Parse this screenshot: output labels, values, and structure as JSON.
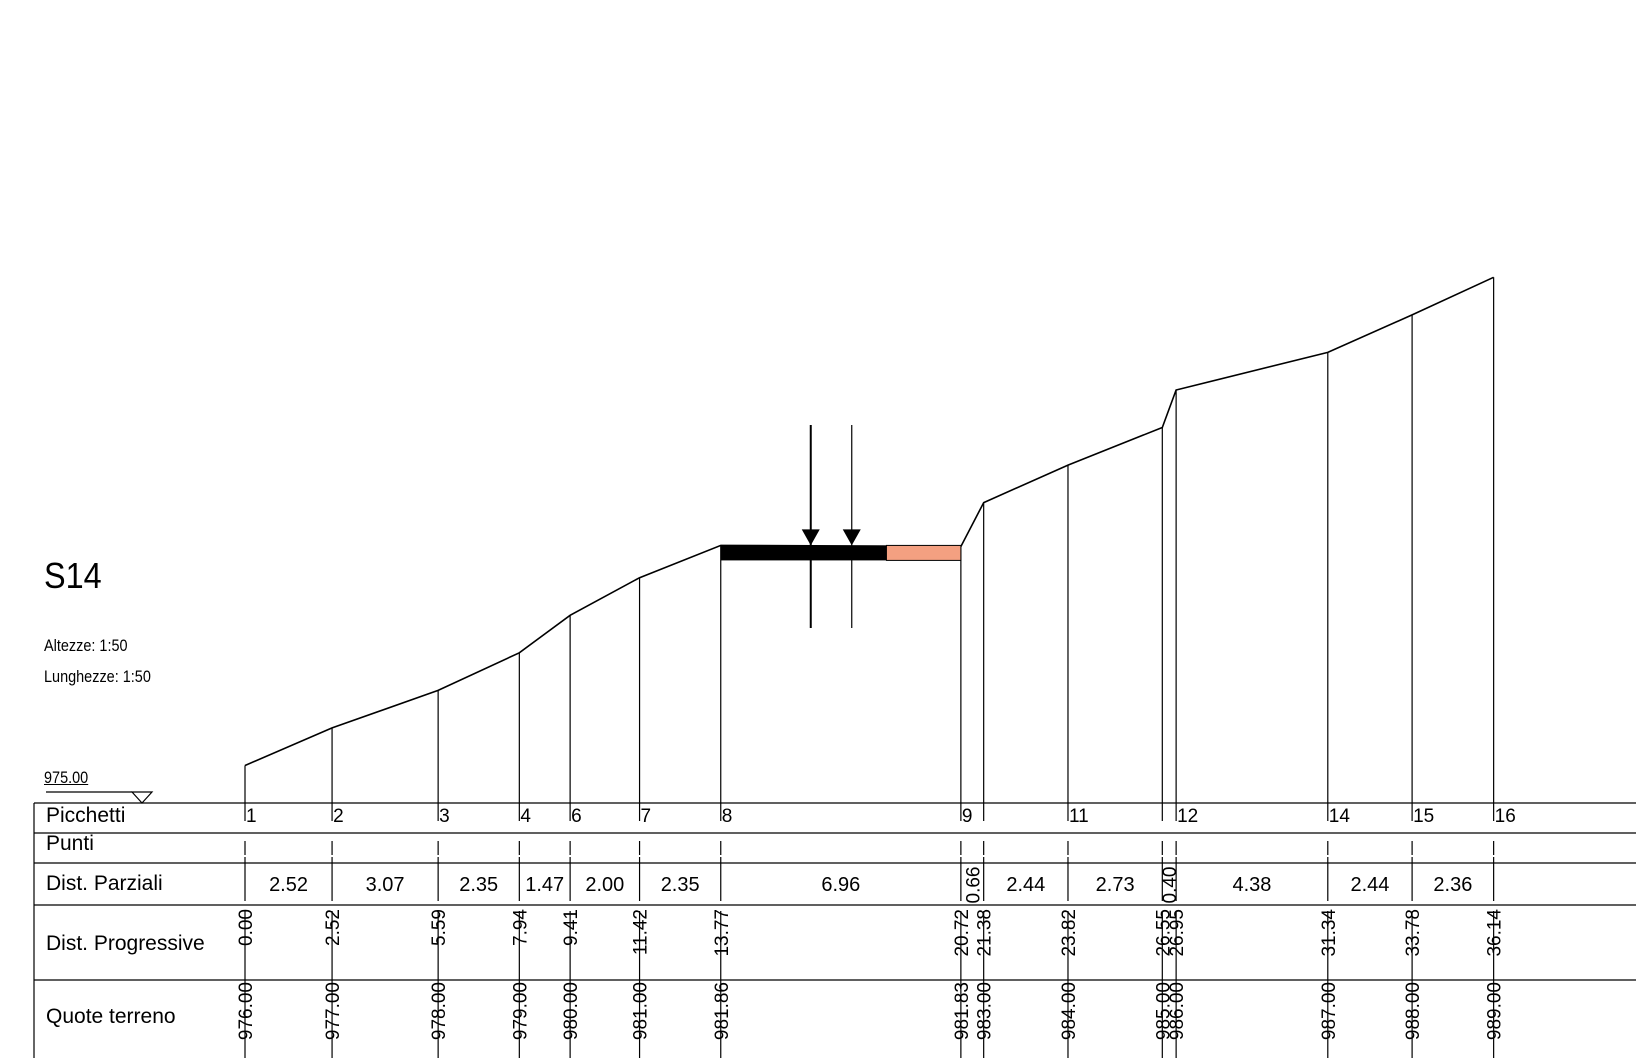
{
  "section_title": "S14",
  "scale": {
    "heights_label": "Altezze:  1:50",
    "lengths_label": "Lunghezze: 1:50"
  },
  "datum_label": "975.00",
  "table": {
    "row_labels": [
      "Picchetti",
      "Punti",
      "Dist. Parziali",
      "Dist. Progressive",
      "Quote terreno"
    ]
  },
  "stations": [
    {
      "label": "1",
      "progressive": 0.0,
      "progressive_text": "0.00",
      "elevation": 976.0,
      "elevation_text": "976.00"
    },
    {
      "label": "2",
      "progressive": 2.52,
      "progressive_text": "2.52",
      "elevation": 977.0,
      "elevation_text": "977.00"
    },
    {
      "label": "3",
      "progressive": 5.59,
      "progressive_text": "5.59",
      "elevation": 978.0,
      "elevation_text": "978.00"
    },
    {
      "label": "4",
      "progressive": 7.94,
      "progressive_text": "7.94",
      "elevation": 979.0,
      "elevation_text": "979.00"
    },
    {
      "label": "6",
      "progressive": 9.41,
      "progressive_text": "9.41",
      "elevation": 980.0,
      "elevation_text": "980.00"
    },
    {
      "label": "7",
      "progressive": 11.42,
      "progressive_text": "11.42",
      "elevation": 981.0,
      "elevation_text": "981.00"
    },
    {
      "label": "8",
      "progressive": 13.77,
      "progressive_text": "13.77",
      "elevation": 981.86,
      "elevation_text": "981.86"
    },
    {
      "label": "9",
      "progressive": 20.72,
      "progressive_text": "20.72",
      "elevation": 981.83,
      "elevation_text": "981.83"
    },
    {
      "label": "",
      "progressive": 21.38,
      "progressive_text": "21.38",
      "elevation": 983.0,
      "elevation_text": "983.00"
    },
    {
      "label": "11",
      "progressive": 23.82,
      "progressive_text": "23.82",
      "elevation": 984.0,
      "elevation_text": "984.00"
    },
    {
      "label": "",
      "progressive": 26.55,
      "progressive_text": "26.55",
      "elevation": 985.0,
      "elevation_text": "985.00"
    },
    {
      "label": "12",
      "progressive": 26.95,
      "progressive_text": "26.95",
      "elevation": 986.0,
      "elevation_text": "986.00"
    },
    {
      "label": "14",
      "progressive": 31.34,
      "progressive_text": "31.34",
      "elevation": 987.0,
      "elevation_text": "987.00"
    },
    {
      "label": "15",
      "progressive": 33.78,
      "progressive_text": "33.78",
      "elevation": 988.0,
      "elevation_text": "988.00"
    },
    {
      "label": "16",
      "progressive": 36.14,
      "progressive_text": "36.14",
      "elevation": 989.0,
      "elevation_text": "989.00"
    }
  ],
  "partial_distances": [
    "2.52",
    "3.07",
    "2.35",
    "1.47",
    "2.00",
    "2.35",
    "6.96",
    "0.66",
    "2.44",
    "2.73",
    "0.40",
    "4.38",
    "2.44",
    "2.36"
  ],
  "road": {
    "pavement_color": "#000000",
    "shoulder_color": "#f4a081",
    "axis_markers": 2
  }
}
